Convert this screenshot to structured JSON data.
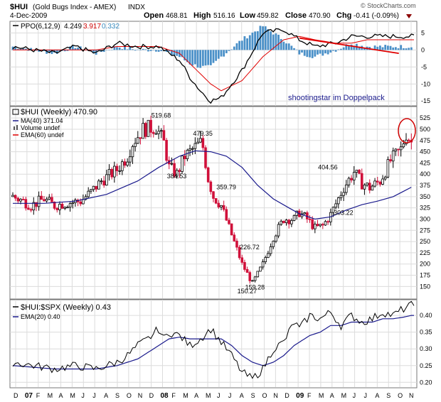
{
  "header": {
    "symbol": "$HUI",
    "name": "(Gold Bugs Index - AMEX)",
    "exchange": "INDX",
    "brand": "© StockCharts.com",
    "date": "4-Dec-2009",
    "open_label": "Open",
    "open": "468.81",
    "high_label": "High",
    "high": "516.16",
    "low_label": "Low",
    "low": "459.82",
    "close_label": "Close",
    "close": "470.90",
    "chg_label": "Chg",
    "chg": "-0.41 (-0.09%)"
  },
  "ppo_panel": {
    "legend_prefix": "PPO(6,12,9)",
    "value1": "4.249",
    "value2": "3.917",
    "value3": "0.332",
    "annotation": "shootingstar im Doppelpack",
    "colors": {
      "ppo": "#000000",
      "signal": "#e00000",
      "histogram": "#4a90c8",
      "trendline": "#e00000"
    }
  },
  "price_panel": {
    "legend_main": "$HUI (Weekly) 470.90",
    "legend_ma": "MA(40) 371.04",
    "legend_volume": "Volume undef",
    "legend_ema": "EMA(60) undef",
    "colors": {
      "up": "#000000",
      "down": "#d0103a",
      "ma": "#1a1a8c",
      "ema": "#e00000",
      "circle": "#d00000"
    }
  },
  "ratio_panel": {
    "legend_main": "$HUI:$SPX (Weekly) 0.43",
    "legend_ema": "EMA(20) 0.40",
    "colors": {
      "ratio": "#000000",
      "ema": "#1a1a8c"
    }
  },
  "x_axis": {
    "labels": [
      "D",
      "07",
      "F",
      "M",
      "A",
      "M",
      "J",
      "J",
      "A",
      "S",
      "O",
      "N",
      "D",
      "08",
      "F",
      "M",
      "A",
      "M",
      "J",
      "J",
      "A",
      "S",
      "O",
      "N",
      "D",
      "09",
      "F",
      "M",
      "A",
      "M",
      "J",
      "J",
      "A",
      "S",
      "O",
      "N"
    ],
    "bold": [
      "07",
      "08",
      "09"
    ]
  },
  "chart_data": [
    {
      "type": "line",
      "title": "PPO(6,12,9)",
      "ylim": [
        -16,
        8
      ],
      "yticks": [
        5,
        0,
        -5,
        -10,
        -15
      ],
      "x": [
        0,
        8,
        16,
        24,
        32,
        40,
        48,
        56,
        60,
        64,
        68,
        72,
        76,
        80,
        88,
        96,
        104,
        110,
        116,
        124,
        130,
        136
      ],
      "series": [
        {
          "name": "PPO",
          "values": [
            1,
            0,
            -1,
            1,
            -1,
            2,
            1,
            1,
            -1,
            -3,
            -8,
            -12,
            -15,
            -14,
            -6,
            5,
            6,
            3,
            1,
            2,
            4,
            4
          ]
        },
        {
          "name": "Signal",
          "values": [
            0,
            0,
            0,
            0,
            0,
            1,
            1,
            1,
            0,
            -1,
            -4,
            -7,
            -10,
            -12,
            -9,
            -2,
            3,
            4,
            3,
            2,
            2,
            3
          ]
        }
      ],
      "trendline": {
        "from": [
          110,
          3.5
        ],
        "to": [
          140,
          -1
        ]
      }
    },
    {
      "type": "candlestick",
      "title": "$HUI (Weekly) 470.90",
      "ylim": [
        130,
        530
      ],
      "yticks": [
        525,
        500,
        475,
        450,
        425,
        400,
        375,
        350,
        325,
        300,
        275,
        250,
        225,
        200,
        175,
        150
      ],
      "weeks": 154,
      "anchors": {
        "x": [
          0,
          4,
          7,
          12,
          16,
          20,
          26,
          30,
          34,
          40,
          44,
          46,
          50,
          55,
          58,
          60,
          63,
          66,
          69,
          72,
          73,
          75,
          77,
          80,
          84,
          88,
          92,
          96,
          100,
          104,
          108,
          110,
          113,
          116,
          119,
          122,
          127,
          131,
          134,
          137,
          141,
          145,
          149,
          151,
          153
        ],
        "y": [
          350,
          340,
          330,
          345,
          330,
          335,
          340,
          360,
          385,
          410,
          440,
          470,
          500,
          505,
          470,
          415,
          400,
          440,
          455,
          470,
          460,
          390,
          350,
          330,
          265,
          200,
          157,
          200,
          260,
          300,
          300,
          315,
          300,
          280,
          285,
          310,
          370,
          405,
          380,
          370,
          385,
          430,
          455,
          490,
          471
        ]
      },
      "labels": [
        {
          "text": "519.68",
          "week": 57,
          "value": 519.68
        },
        {
          "text": "384.53",
          "week": 63,
          "value": 384.53
        },
        {
          "text": "479.35",
          "week": 73,
          "value": 479.35
        },
        {
          "text": "359.79",
          "week": 82,
          "value": 359.79
        },
        {
          "text": "226.72",
          "week": 91,
          "value": 226.72
        },
        {
          "text": "159.28",
          "week": 93,
          "value": 159.28
        },
        {
          "text": "150.27",
          "week": 90,
          "value": 150.27
        },
        {
          "text": "404.56",
          "week": 121,
          "value": 404.56
        },
        {
          "text": "303.22",
          "week": 127,
          "value": 303.22
        }
      ],
      "ma40": {
        "x": [
          0,
          12,
          24,
          36,
          48,
          56,
          64,
          70,
          76,
          82,
          88,
          94,
          100,
          106,
          110,
          116,
          122,
          128,
          134,
          140,
          146,
          150,
          153
        ],
        "values": [
          335,
          335,
          340,
          355,
          385,
          415,
          440,
          452,
          450,
          440,
          415,
          375,
          345,
          325,
          312,
          300,
          305,
          320,
          332,
          340,
          350,
          362,
          371
        ]
      }
    },
    {
      "type": "line",
      "title": "$HUI:$SPX (Weekly) 0.43",
      "ylim": [
        0.19,
        0.43
      ],
      "yticks": [
        0.4,
        0.35,
        0.3,
        0.25,
        0.2
      ],
      "x": [
        0,
        8,
        16,
        24,
        32,
        40,
        44,
        48,
        52,
        56,
        58,
        60,
        64,
        68,
        72,
        76,
        80,
        84,
        88,
        92,
        96,
        100,
        104,
        108,
        110,
        114,
        118,
        122,
        126,
        130,
        134,
        138,
        142,
        146,
        150,
        153
      ],
      "series": [
        {
          "name": "$HUI:$SPX",
          "values": [
            0.26,
            0.25,
            0.24,
            0.25,
            0.24,
            0.26,
            0.28,
            0.31,
            0.33,
            0.36,
            0.33,
            0.35,
            0.34,
            0.31,
            0.33,
            0.36,
            0.32,
            0.28,
            0.23,
            0.21,
            0.24,
            0.3,
            0.32,
            0.38,
            0.36,
            0.4,
            0.39,
            0.41,
            0.37,
            0.4,
            0.38,
            0.39,
            0.41,
            0.4,
            0.42,
            0.43
          ]
        },
        {
          "name": "EMA(20)",
          "values": [
            0.25,
            0.245,
            0.24,
            0.24,
            0.24,
            0.25,
            0.26,
            0.27,
            0.29,
            0.31,
            0.32,
            0.33,
            0.335,
            0.33,
            0.33,
            0.33,
            0.33,
            0.31,
            0.28,
            0.26,
            0.25,
            0.26,
            0.28,
            0.31,
            0.32,
            0.34,
            0.35,
            0.37,
            0.37,
            0.38,
            0.38,
            0.38,
            0.39,
            0.39,
            0.395,
            0.4
          ]
        }
      ]
    }
  ]
}
